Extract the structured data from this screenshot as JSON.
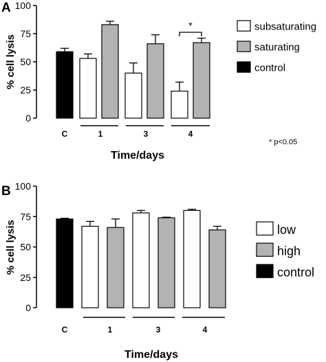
{
  "panels": [
    {
      "label": "A",
      "footnote": "* p<0.05",
      "chart_data": {
        "type": "bar",
        "xlabel": "Time/days",
        "ylabel": "% cell lysis",
        "ylim": [
          0,
          100
        ],
        "yticks": [
          0,
          25,
          50,
          75,
          100
        ],
        "grid": false,
        "legend_position": "right",
        "groups": [
          "C",
          "1",
          "3",
          "4"
        ],
        "legend": [
          {
            "name": "subsaturating",
            "color": "#ffffff"
          },
          {
            "name": "saturating",
            "color": "#b3b3b3"
          },
          {
            "name": "control",
            "color": "#000000"
          }
        ],
        "bars": [
          {
            "group": "C",
            "series": "control",
            "value": 59,
            "error": 3
          },
          {
            "group": "1",
            "series": "subsaturating",
            "value": 53,
            "error": 4
          },
          {
            "group": "1",
            "series": "saturating",
            "value": 83,
            "error": 3
          },
          {
            "group": "3",
            "series": "subsaturating",
            "value": 40,
            "error": 9
          },
          {
            "group": "3",
            "series": "saturating",
            "value": 66,
            "error": 8
          },
          {
            "group": "4",
            "series": "subsaturating",
            "value": 24,
            "error": 8
          },
          {
            "group": "4",
            "series": "saturating",
            "value": 67,
            "error": 4
          }
        ],
        "annotations": [
          {
            "text": "*",
            "group": "4"
          }
        ]
      }
    },
    {
      "label": "B",
      "chart_data": {
        "type": "bar",
        "xlabel": "Time/days",
        "ylabel": "% cell lysis",
        "ylim": [
          0,
          100
        ],
        "yticks": [
          0,
          25,
          50,
          75,
          100
        ],
        "grid": false,
        "legend_position": "right",
        "groups": [
          "C",
          "1",
          "3",
          "4"
        ],
        "legend": [
          {
            "name": "low",
            "color": "#ffffff"
          },
          {
            "name": "high",
            "color": "#b3b3b3"
          },
          {
            "name": "control",
            "color": "#000000"
          }
        ],
        "bars": [
          {
            "group": "C",
            "series": "control",
            "value": 73,
            "error": 0.6
          },
          {
            "group": "1",
            "series": "low",
            "value": 67,
            "error": 4
          },
          {
            "group": "1",
            "series": "high",
            "value": 66,
            "error": 7
          },
          {
            "group": "3",
            "series": "low",
            "value": 78,
            "error": 2
          },
          {
            "group": "3",
            "series": "high",
            "value": 74,
            "error": 0.5
          },
          {
            "group": "4",
            "series": "low",
            "value": 80,
            "error": 1
          },
          {
            "group": "4",
            "series": "high",
            "value": 64,
            "error": 3
          }
        ]
      }
    }
  ]
}
